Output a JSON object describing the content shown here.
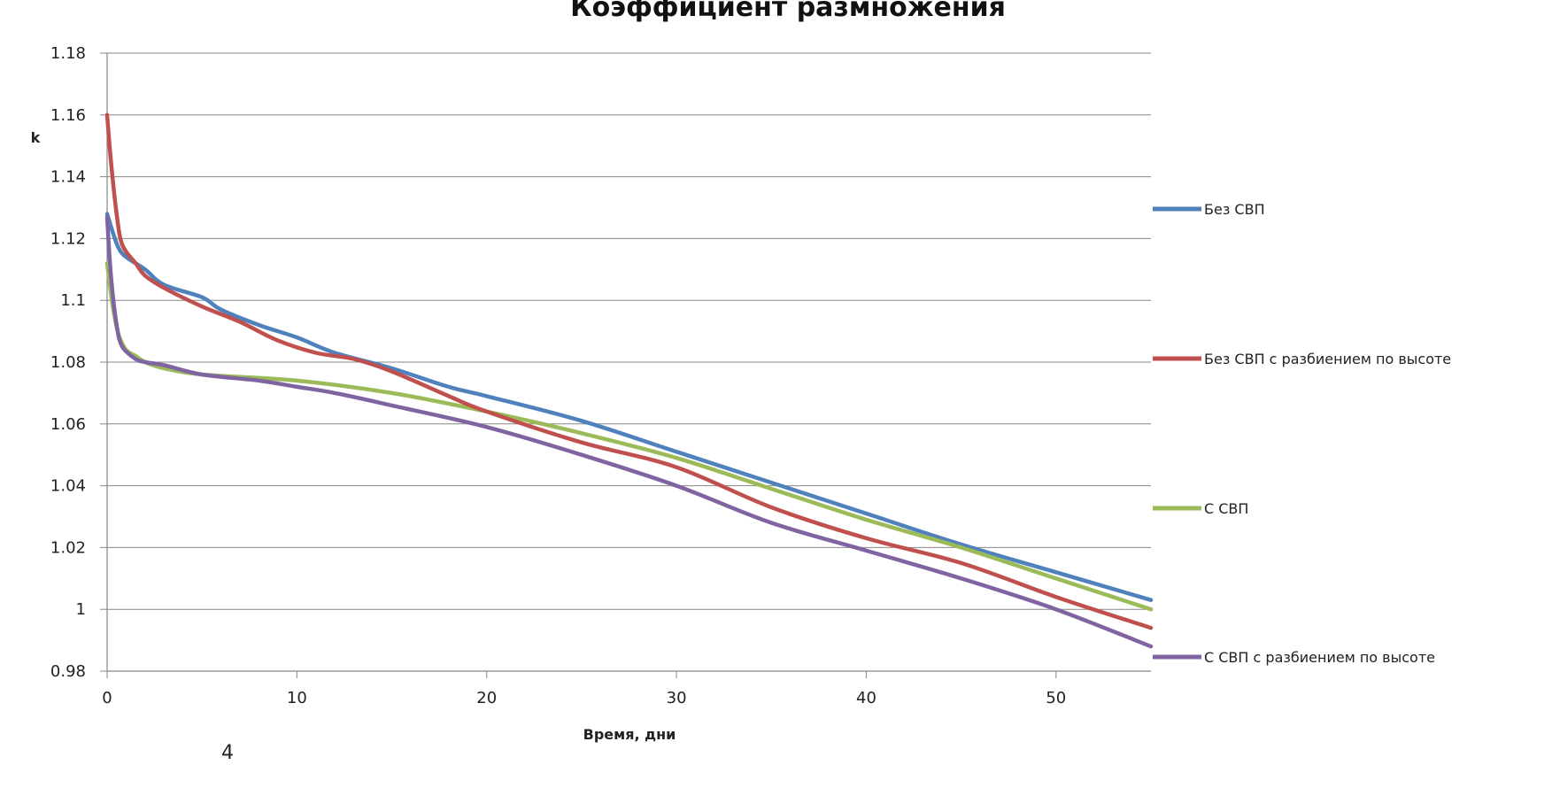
{
  "chart_data": {
    "type": "line",
    "title": "Коэффициент размножения",
    "xlabel": "Время, дни",
    "ylabel": "k",
    "xlim": [
      0,
      55
    ],
    "ylim": [
      0.98,
      1.18
    ],
    "x_ticks": [
      0,
      10,
      20,
      30,
      40,
      50
    ],
    "y_ticks": [
      "0.98",
      "1",
      "1.02",
      "1.04",
      "1.06",
      "1.08",
      "1.1",
      "1.12",
      "1.14",
      "1.16",
      "1.18"
    ],
    "grid": "horizontal",
    "legend_position": "right",
    "series": [
      {
        "name": "Без СВП",
        "color": "#4f81bd",
        "points": [
          [
            0,
            1.128
          ],
          [
            0.3,
            1.122
          ],
          [
            0.6,
            1.117
          ],
          [
            1,
            1.114
          ],
          [
            2,
            1.11
          ],
          [
            3,
            1.105
          ],
          [
            5,
            1.101
          ],
          [
            6,
            1.097
          ],
          [
            8,
            1.092
          ],
          [
            10,
            1.088
          ],
          [
            12,
            1.083
          ],
          [
            15,
            1.078
          ],
          [
            18,
            1.072
          ],
          [
            20,
            1.069
          ],
          [
            25,
            1.061
          ],
          [
            30,
            1.051
          ],
          [
            35,
            1.041
          ],
          [
            40,
            1.031
          ],
          [
            45,
            1.021
          ],
          [
            50,
            1.012
          ],
          [
            55,
            1.003
          ]
        ]
      },
      {
        "name": "Без СВП с разбиением по высоте",
        "color": "#c0504d",
        "points": [
          [
            0,
            1.16
          ],
          [
            0.2,
            1.145
          ],
          [
            0.5,
            1.128
          ],
          [
            0.8,
            1.118
          ],
          [
            1.5,
            1.112
          ],
          [
            2,
            1.108
          ],
          [
            3,
            1.104
          ],
          [
            5,
            1.098
          ],
          [
            7,
            1.093
          ],
          [
            9,
            1.087
          ],
          [
            11,
            1.083
          ],
          [
            13,
            1.081
          ],
          [
            15,
            1.077
          ],
          [
            18,
            1.069
          ],
          [
            20,
            1.064
          ],
          [
            25,
            1.054
          ],
          [
            30,
            1.046
          ],
          [
            35,
            1.033
          ],
          [
            40,
            1.023
          ],
          [
            45,
            1.015
          ],
          [
            50,
            1.004
          ],
          [
            55,
            0.994
          ]
        ]
      },
      {
        "name": "С СВП",
        "color": "#9bbb59",
        "points": [
          [
            0,
            1.112
          ],
          [
            0.3,
            1.098
          ],
          [
            0.6,
            1.089
          ],
          [
            1,
            1.084
          ],
          [
            1.5,
            1.082
          ],
          [
            2,
            1.08
          ],
          [
            3,
            1.078
          ],
          [
            5,
            1.076
          ],
          [
            10,
            1.074
          ],
          [
            15,
            1.07
          ],
          [
            20,
            1.064
          ],
          [
            25,
            1.057
          ],
          [
            30,
            1.049
          ],
          [
            35,
            1.039
          ],
          [
            40,
            1.029
          ],
          [
            45,
            1.02
          ],
          [
            50,
            1.01
          ],
          [
            55,
            1.0
          ]
        ]
      },
      {
        "name": "С СВП с разбиением по высоте",
        "color": "#8064a2",
        "points": [
          [
            0,
            1.127
          ],
          [
            0.2,
            1.108
          ],
          [
            0.5,
            1.092
          ],
          [
            0.8,
            1.085
          ],
          [
            1.5,
            1.081
          ],
          [
            2,
            1.08
          ],
          [
            3,
            1.079
          ],
          [
            5,
            1.076
          ],
          [
            8,
            1.074
          ],
          [
            10,
            1.072
          ],
          [
            12,
            1.07
          ],
          [
            15,
            1.066
          ],
          [
            20,
            1.059
          ],
          [
            25,
            1.05
          ],
          [
            30,
            1.04
          ],
          [
            35,
            1.028
          ],
          [
            40,
            1.019
          ],
          [
            45,
            1.01
          ],
          [
            50,
            1.0
          ],
          [
            55,
            0.988
          ]
        ]
      }
    ]
  },
  "stray_text": "4"
}
